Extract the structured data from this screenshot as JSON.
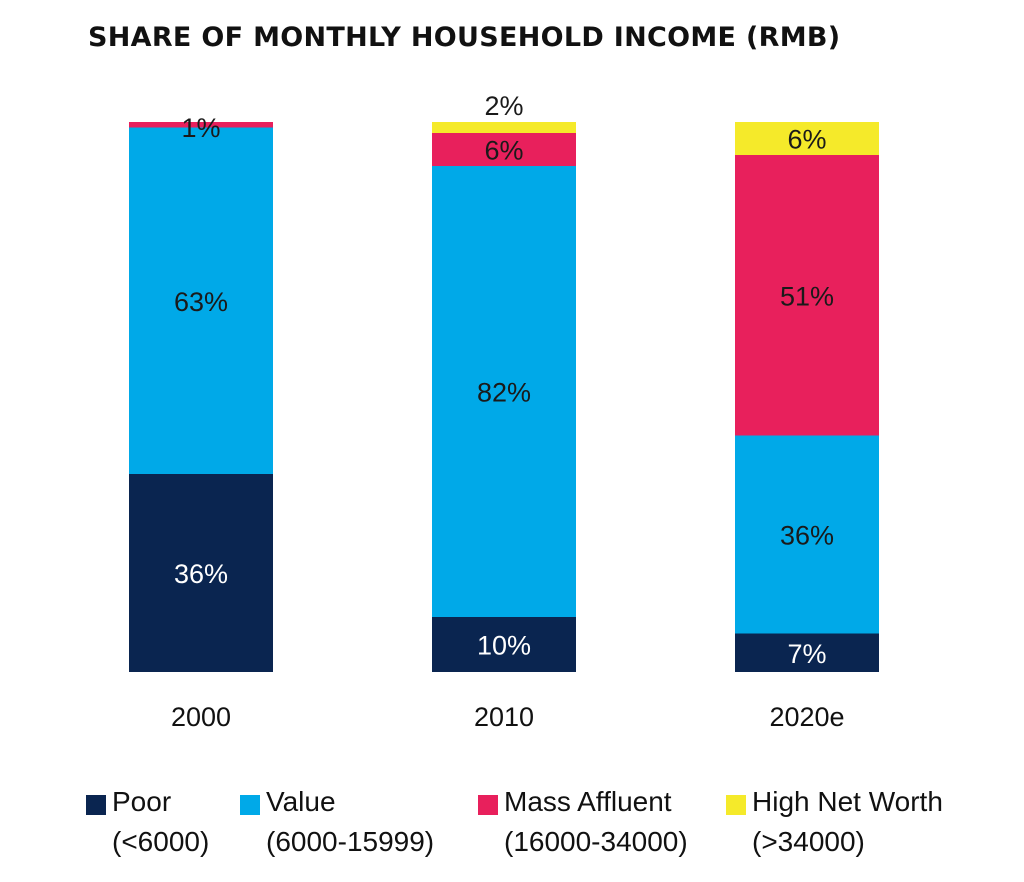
{
  "chart_data": {
    "type": "bar",
    "stacked": true,
    "title": "SHARE OF MONTHLY HOUSEHOLD INCOME (RMB)",
    "categories": [
      "2000",
      "2010",
      "2020e"
    ],
    "series": [
      {
        "name": "Poor",
        "range": "(<6000)",
        "color": "#0a2550",
        "label_color": "#ffffff",
        "values": [
          36,
          10,
          7
        ]
      },
      {
        "name": "Value",
        "range": "(6000-15999)",
        "color": "#00a9e8",
        "label_color": "#1a1a1a",
        "values": [
          63,
          82,
          36
        ]
      },
      {
        "name": "Mass Affluent",
        "range": "(16000-34000)",
        "color": "#e8205c",
        "label_color": "#1a1a1a",
        "values": [
          1,
          6,
          51
        ]
      },
      {
        "name": "High Net Worth",
        "range": "(>34000)",
        "color": "#f5ea2a",
        "label_color": "#1a1a1a",
        "values": [
          0,
          2,
          6
        ]
      }
    ],
    "data_labels": [
      [
        "36%",
        "63%",
        "1%",
        ""
      ],
      [
        "10%",
        "82%",
        "6%",
        "2%"
      ],
      [
        "7%",
        "36%",
        "51%",
        "6%"
      ]
    ],
    "ylim": [
      0,
      100
    ],
    "xlabel": "",
    "ylabel": "",
    "grid": false,
    "legend_position": "bottom"
  }
}
